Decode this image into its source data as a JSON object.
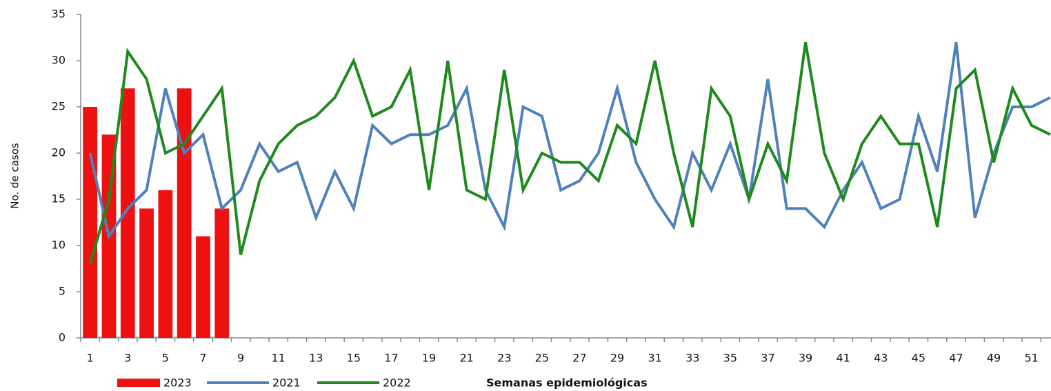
{
  "chart_data": {
    "type": "bar-line",
    "xlabel": "Semanas epidemiológicas",
    "ylabel": "No. de casos",
    "categories": [
      "1",
      null,
      "3",
      null,
      "5",
      null,
      "7",
      null,
      "9",
      null,
      "11",
      null,
      "13",
      null,
      "15",
      null,
      "17",
      null,
      "19",
      null,
      "21",
      null,
      "23",
      null,
      "25",
      null,
      "27",
      null,
      "29",
      null,
      "31",
      null,
      "33",
      null,
      "35",
      null,
      "37",
      null,
      "39",
      null,
      "41",
      null,
      "43",
      null,
      "45",
      null,
      "47",
      null,
      "49",
      null,
      "51",
      null
    ],
    "series": [
      {
        "name": "2023",
        "kind": "bar",
        "color": "#ee1111",
        "values": [
          25,
          22,
          27,
          14,
          16,
          27,
          11,
          14,
          null,
          null,
          null,
          null,
          null,
          null,
          null,
          null,
          null,
          null,
          null,
          null,
          null,
          null,
          null,
          null,
          null,
          null,
          null,
          null,
          null,
          null,
          null,
          null,
          null,
          null,
          null,
          null,
          null,
          null,
          null,
          null,
          null,
          null,
          null,
          null,
          null,
          null,
          null,
          null,
          null,
          null,
          null,
          null
        ]
      },
      {
        "name": "2021",
        "kind": "line",
        "color": "#4f81bd",
        "values": [
          20,
          11,
          14,
          16,
          27,
          20,
          22,
          14,
          16,
          21,
          18,
          19,
          13,
          18,
          14,
          23,
          21,
          22,
          22,
          23,
          27,
          16,
          12,
          25,
          24,
          16,
          17,
          20,
          27,
          19,
          15,
          12,
          20,
          16,
          21,
          15,
          28,
          14,
          14,
          12,
          16,
          19,
          14,
          15,
          24,
          18,
          32,
          13,
          20,
          25,
          25,
          26
        ]
      },
      {
        "name": "2022",
        "kind": "line",
        "color": "#1e8a1e",
        "values": [
          8,
          15,
          31,
          28,
          20,
          21,
          24,
          27,
          9,
          17,
          21,
          23,
          24,
          26,
          30,
          24,
          25,
          29,
          16,
          30,
          16,
          15,
          29,
          16,
          20,
          19,
          19,
          17,
          23,
          21,
          30,
          20,
          12,
          27,
          24,
          15,
          21,
          17,
          32,
          20,
          15,
          21,
          24,
          21,
          21,
          12,
          27,
          29,
          19,
          27,
          23,
          22
        ]
      }
    ],
    "ylim": [
      0,
      35
    ],
    "yticks": [
      0,
      5,
      10,
      15,
      20,
      25,
      30,
      35
    ],
    "grid": false
  }
}
